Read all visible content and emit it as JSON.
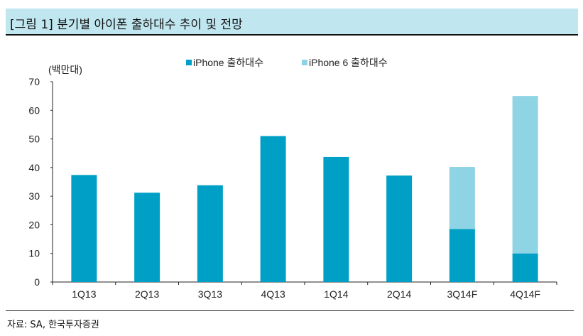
{
  "title": "[그림 1] 분기별 아이폰 출하대수 추이 및 전망",
  "source": "자료: SA,  한국투자증권",
  "chart_data": {
    "type": "bar",
    "stacked": true,
    "title": "[그림 1] 분기별 아이폰 출하대수 추이 및 전망",
    "ylabel": "(백만대)",
    "xlabel": "",
    "ylim": [
      0,
      70
    ],
    "yticks": [
      0,
      10,
      20,
      30,
      40,
      50,
      60,
      70
    ],
    "categories": [
      "1Q13",
      "2Q13",
      "3Q13",
      "4Q13",
      "1Q14",
      "2Q14",
      "3Q14F",
      "4Q14F"
    ],
    "series": [
      {
        "name": "iPhone 출하대수",
        "color": "#00a0c6",
        "values": [
          37.4,
          31.2,
          33.8,
          51.0,
          43.7,
          37.2,
          18.5,
          10.0
        ]
      },
      {
        "name": "iPhone 6 출하대수",
        "color": "#8fd4e4",
        "values": [
          0,
          0,
          0,
          0,
          0,
          0,
          21.7,
          55.0
        ]
      }
    ],
    "legend": "top-center",
    "grid": false
  }
}
